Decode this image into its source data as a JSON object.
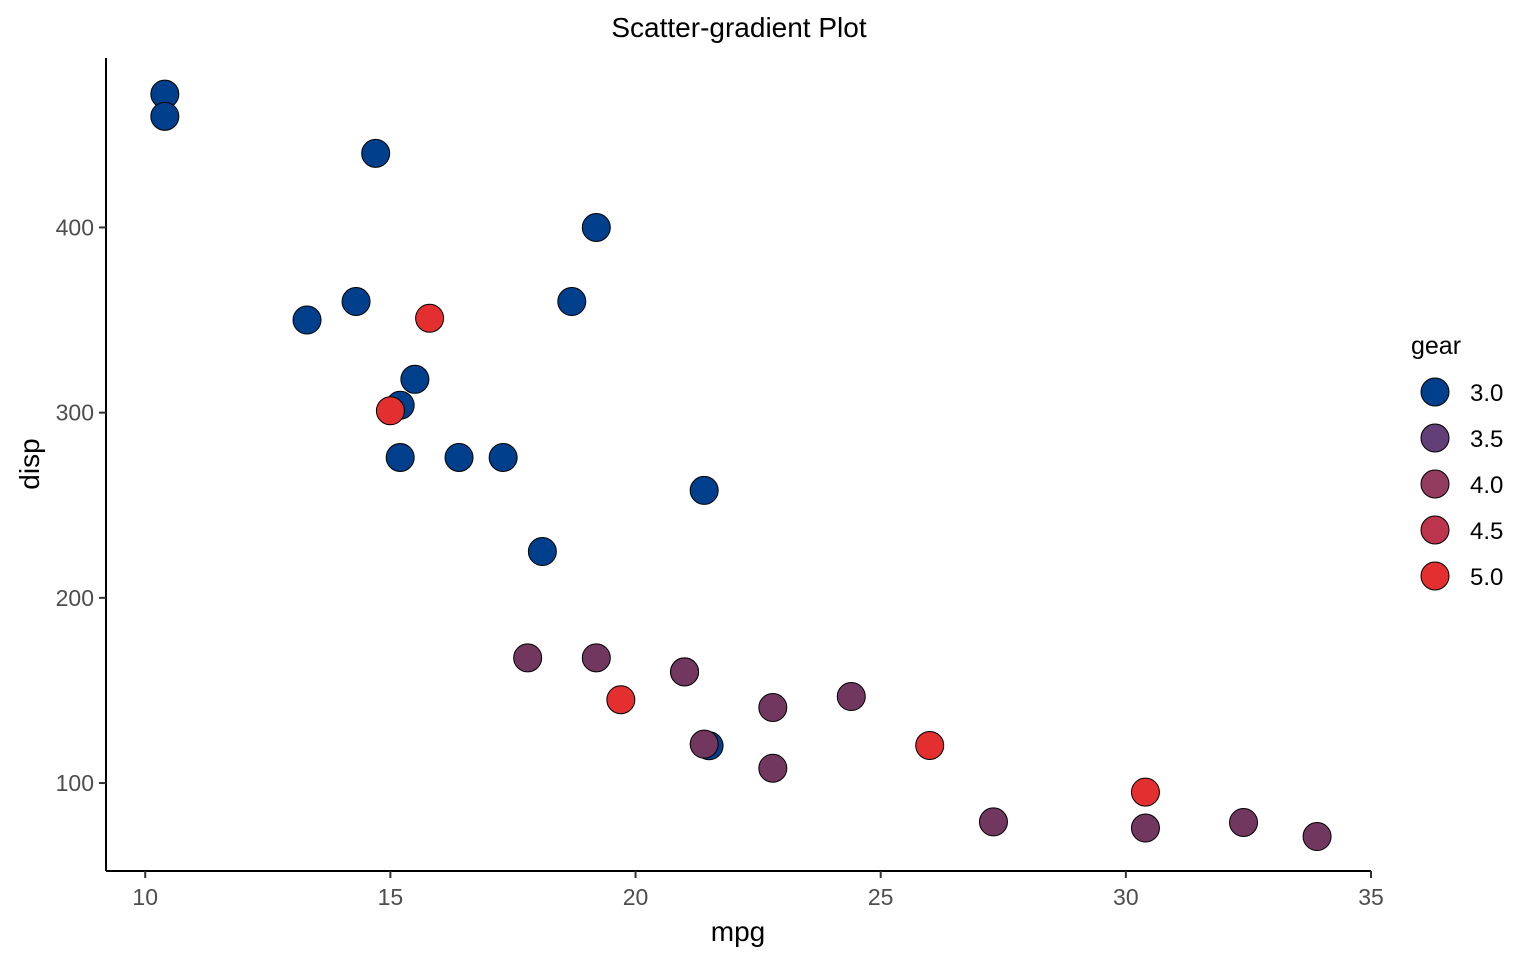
{
  "chart_data": {
    "type": "scatter",
    "title": "Scatter-gradient Plot",
    "xlabel": "mpg",
    "ylabel": "disp",
    "xlim": [
      9.2,
      35.0
    ],
    "ylim": [
      52.5,
      491.5
    ],
    "x_ticks": [
      10,
      15,
      20,
      25,
      30,
      35
    ],
    "x_tick_labels": [
      "10",
      "15",
      "20",
      "25",
      "30",
      "35"
    ],
    "y_ticks": [
      100,
      200,
      300,
      400
    ],
    "y_tick_labels": [
      "100",
      "200",
      "300",
      "400"
    ],
    "grid": false,
    "legend": {
      "title": "gear",
      "position": "right",
      "items": [
        {
          "value": 3.0,
          "label": "3.0",
          "color": "#003f8c"
        },
        {
          "value": 3.5,
          "label": "3.5",
          "color": "#623f77"
        },
        {
          "value": 4.0,
          "label": "4.0",
          "color": "#943c5f"
        },
        {
          "value": 4.5,
          "label": "4.5",
          "color": "#bc354c"
        },
        {
          "value": 5.0,
          "label": "5.0",
          "color": "#e32f30"
        }
      ]
    },
    "gradient": {
      "low": "#003f8c",
      "high": "#e32f30",
      "min": 3,
      "max": 5
    },
    "points": [
      {
        "x": 21.0,
        "y": 160.0,
        "gear": 4
      },
      {
        "x": 21.0,
        "y": 160.0,
        "gear": 4
      },
      {
        "x": 22.8,
        "y": 108.0,
        "gear": 4
      },
      {
        "x": 21.4,
        "y": 258.0,
        "gear": 3
      },
      {
        "x": 18.7,
        "y": 360.0,
        "gear": 3
      },
      {
        "x": 18.1,
        "y": 225.0,
        "gear": 3
      },
      {
        "x": 14.3,
        "y": 360.0,
        "gear": 3
      },
      {
        "x": 24.4,
        "y": 146.7,
        "gear": 4
      },
      {
        "x": 22.8,
        "y": 140.8,
        "gear": 4
      },
      {
        "x": 19.2,
        "y": 167.6,
        "gear": 4
      },
      {
        "x": 17.8,
        "y": 167.6,
        "gear": 4
      },
      {
        "x": 16.4,
        "y": 275.8,
        "gear": 3
      },
      {
        "x": 17.3,
        "y": 275.8,
        "gear": 3
      },
      {
        "x": 15.2,
        "y": 275.8,
        "gear": 3
      },
      {
        "x": 10.4,
        "y": 472.0,
        "gear": 3
      },
      {
        "x": 10.4,
        "y": 460.0,
        "gear": 3
      },
      {
        "x": 14.7,
        "y": 440.0,
        "gear": 3
      },
      {
        "x": 32.4,
        "y": 78.7,
        "gear": 4
      },
      {
        "x": 30.4,
        "y": 75.7,
        "gear": 4
      },
      {
        "x": 33.9,
        "y": 71.1,
        "gear": 4
      },
      {
        "x": 21.5,
        "y": 120.1,
        "gear": 3
      },
      {
        "x": 15.5,
        "y": 318.0,
        "gear": 3
      },
      {
        "x": 15.2,
        "y": 304.0,
        "gear": 3
      },
      {
        "x": 13.3,
        "y": 350.0,
        "gear": 3
      },
      {
        "x": 19.2,
        "y": 400.0,
        "gear": 3
      },
      {
        "x": 27.3,
        "y": 79.0,
        "gear": 4
      },
      {
        "x": 26.0,
        "y": 120.3,
        "gear": 5
      },
      {
        "x": 30.4,
        "y": 95.1,
        "gear": 5
      },
      {
        "x": 15.8,
        "y": 351.0,
        "gear": 5
      },
      {
        "x": 19.7,
        "y": 145.0,
        "gear": 5
      },
      {
        "x": 15.0,
        "y": 301.0,
        "gear": 5
      },
      {
        "x": 21.4,
        "y": 121.0,
        "gear": 4
      }
    ]
  }
}
